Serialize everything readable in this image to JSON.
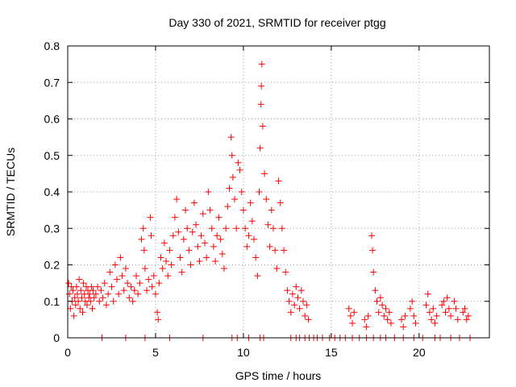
{
  "chart_data": {
    "type": "scatter",
    "title": "Day 330 of 2021, SRMTID for receiver ptgg",
    "xlabel": "GPS time / hours",
    "ylabel": "SRMTID / TECUs",
    "xlim": [
      0,
      24
    ],
    "ylim": [
      0,
      0.8
    ],
    "xticks": [
      0,
      5,
      10,
      15,
      20
    ],
    "yticks": [
      0,
      0.1,
      0.2,
      0.3,
      0.4,
      0.5,
      0.6,
      0.7,
      0.8
    ],
    "grid": true,
    "marker": "plus",
    "color": "#ff0000",
    "series": [
      {
        "name": "SRMTID",
        "points": [
          [
            0.05,
            0.15
          ],
          [
            0.1,
            0.12
          ],
          [
            0.15,
            0.08
          ],
          [
            0.2,
            0.14
          ],
          [
            0.25,
            0.1
          ],
          [
            0.3,
            0.13
          ],
          [
            0.35,
            0.06
          ],
          [
            0.4,
            0.11
          ],
          [
            0.45,
            0.09
          ],
          [
            0.5,
            0.14
          ],
          [
            0.55,
            0.12
          ],
          [
            0.6,
            0.1
          ],
          [
            0.65,
            0.16
          ],
          [
            0.7,
            0.08
          ],
          [
            0.75,
            0.13
          ],
          [
            0.8,
            0.11
          ],
          [
            0.85,
            0.07
          ],
          [
            0.9,
            0.15
          ],
          [
            0.95,
            0.12
          ],
          [
            1.0,
            0.1
          ],
          [
            1.05,
            0.14
          ],
          [
            1.1,
            0.09
          ],
          [
            1.15,
            0.13
          ],
          [
            1.2,
            0.11
          ],
          [
            1.25,
            0.12
          ],
          [
            1.3,
            0.1
          ],
          [
            1.35,
            0.14
          ],
          [
            1.4,
            0.08
          ],
          [
            1.45,
            0.13
          ],
          [
            1.5,
            0.11
          ],
          [
            1.6,
            0.12
          ],
          [
            1.7,
            0.14
          ],
          [
            1.8,
            0.1
          ],
          [
            1.9,
            0.13
          ],
          [
            2.0,
            0.11
          ],
          [
            2.1,
            0.15
          ],
          [
            2.2,
            0.09
          ],
          [
            2.3,
            0.12
          ],
          [
            2.4,
            0.18
          ],
          [
            2.5,
            0.14
          ],
          [
            2.6,
            0.1
          ],
          [
            2.7,
            0.2
          ],
          [
            2.8,
            0.16
          ],
          [
            2.9,
            0.12
          ],
          [
            3.0,
            0.22
          ],
          [
            3.1,
            0.17
          ],
          [
            3.2,
            0.13
          ],
          [
            3.3,
            0.19
          ],
          [
            3.4,
            0.15
          ],
          [
            3.5,
            0.11
          ],
          [
            3.6,
            0.14
          ],
          [
            3.7,
            0.1
          ],
          [
            3.8,
            0.13
          ],
          [
            3.9,
            0.17
          ],
          [
            4.0,
            0.12
          ],
          [
            4.1,
            0.15
          ],
          [
            4.2,
            0.27
          ],
          [
            4.3,
            0.3
          ],
          [
            4.35,
            0.24
          ],
          [
            4.4,
            0.19
          ],
          [
            4.5,
            0.13
          ],
          [
            4.6,
            0.16
          ],
          [
            4.7,
            0.33
          ],
          [
            4.75,
            0.28
          ],
          [
            4.8,
            0.14
          ],
          [
            4.9,
            0.17
          ],
          [
            5.0,
            0.12
          ],
          [
            5.1,
            0.07
          ],
          [
            5.15,
            0.05
          ],
          [
            5.2,
            0.15
          ],
          [
            5.3,
            0.22
          ],
          [
            5.4,
            0.19
          ],
          [
            5.5,
            0.26
          ],
          [
            5.6,
            0.21
          ],
          [
            5.7,
            0.17
          ],
          [
            5.8,
            0.24
          ],
          [
            5.9,
            0.2
          ],
          [
            6.0,
            0.28
          ],
          [
            6.1,
            0.33
          ],
          [
            6.2,
            0.38
          ],
          [
            6.3,
            0.29
          ],
          [
            6.4,
            0.22
          ],
          [
            6.5,
            0.18
          ],
          [
            6.6,
            0.27
          ],
          [
            6.7,
            0.35
          ],
          [
            6.8,
            0.3
          ],
          [
            6.9,
            0.24
          ],
          [
            7.0,
            0.2
          ],
          [
            7.1,
            0.29
          ],
          [
            7.2,
            0.37
          ],
          [
            7.3,
            0.31
          ],
          [
            7.4,
            0.25
          ],
          [
            7.5,
            0.21
          ],
          [
            7.6,
            0.28
          ],
          [
            7.7,
            0.34
          ],
          [
            7.8,
            0.26
          ],
          [
            7.9,
            0.22
          ],
          [
            8.0,
            0.4
          ],
          [
            8.1,
            0.35
          ],
          [
            8.2,
            0.3
          ],
          [
            8.3,
            0.25
          ],
          [
            8.4,
            0.21
          ],
          [
            8.5,
            0.28
          ],
          [
            8.6,
            0.33
          ],
          [
            8.7,
            0.27
          ],
          [
            8.8,
            0.23
          ],
          [
            8.9,
            0.19
          ],
          [
            9.0,
            0.3
          ],
          [
            9.1,
            0.36
          ],
          [
            9.2,
            0.41
          ],
          [
            9.3,
            0.55
          ],
          [
            9.35,
            0.5
          ],
          [
            9.4,
            0.44
          ],
          [
            9.5,
            0.38
          ],
          [
            9.6,
            0.3
          ],
          [
            9.7,
            0.48
          ],
          [
            9.8,
            0.46
          ],
          [
            9.9,
            0.4
          ],
          [
            10.0,
            0.35
          ],
          [
            10.1,
            0.3
          ],
          [
            10.2,
            0.25
          ],
          [
            10.3,
            0.28
          ],
          [
            10.4,
            0.37
          ],
          [
            10.5,
            0.32
          ],
          [
            10.6,
            0.27
          ],
          [
            10.7,
            0.22
          ],
          [
            10.8,
            0.17
          ],
          [
            10.9,
            0.4
          ],
          [
            10.95,
            0.52
          ],
          [
            11.0,
            0.64
          ],
          [
            11.02,
            0.69
          ],
          [
            11.05,
            0.75
          ],
          [
            11.1,
            0.58
          ],
          [
            11.2,
            0.45
          ],
          [
            11.3,
            0.38
          ],
          [
            11.4,
            0.31
          ],
          [
            11.5,
            0.25
          ],
          [
            11.6,
            0.35
          ],
          [
            11.7,
            0.3
          ],
          [
            11.8,
            0.24
          ],
          [
            11.9,
            0.19
          ],
          [
            12.0,
            0.43
          ],
          [
            12.1,
            0.37
          ],
          [
            12.2,
            0.3
          ],
          [
            12.3,
            0.24
          ],
          [
            12.4,
            0.18
          ],
          [
            12.5,
            0.13
          ],
          [
            12.6,
            0.1
          ],
          [
            12.7,
            0.07
          ],
          [
            12.8,
            0.12
          ],
          [
            12.9,
            0.09
          ],
          [
            13.0,
            0.14
          ],
          [
            13.1,
            0.11
          ],
          [
            13.2,
            0.08
          ],
          [
            13.3,
            0.13
          ],
          [
            13.4,
            0.1
          ],
          [
            13.5,
            0.06
          ],
          [
            13.6,
            0.09
          ],
          [
            13.7,
            0.05
          ],
          [
            16.0,
            0.08
          ],
          [
            16.1,
            0.06
          ],
          [
            16.2,
            0.04
          ],
          [
            16.3,
            0.07
          ],
          [
            16.9,
            0.05
          ],
          [
            17.0,
            0.03
          ],
          [
            17.1,
            0.06
          ],
          [
            17.3,
            0.28
          ],
          [
            17.35,
            0.24
          ],
          [
            17.4,
            0.18
          ],
          [
            17.5,
            0.13
          ],
          [
            17.6,
            0.1
          ],
          [
            17.7,
            0.07
          ],
          [
            17.8,
            0.11
          ],
          [
            17.9,
            0.09
          ],
          [
            18.0,
            0.06
          ],
          [
            18.1,
            0.08
          ],
          [
            18.2,
            0.05
          ],
          [
            18.3,
            0.07
          ],
          [
            18.4,
            0.04
          ],
          [
            19.0,
            0.05
          ],
          [
            19.1,
            0.03
          ],
          [
            19.2,
            0.06
          ],
          [
            19.5,
            0.08
          ],
          [
            19.6,
            0.1
          ],
          [
            19.7,
            0.06
          ],
          [
            19.8,
            0.04
          ],
          [
            20.4,
            0.09
          ],
          [
            20.5,
            0.12
          ],
          [
            20.6,
            0.07
          ],
          [
            20.7,
            0.05
          ],
          [
            20.8,
            0.08
          ],
          [
            20.9,
            0.04
          ],
          [
            21.0,
            0.06
          ],
          [
            21.3,
            0.09
          ],
          [
            21.4,
            0.1
          ],
          [
            21.5,
            0.07
          ],
          [
            21.6,
            0.11
          ],
          [
            21.7,
            0.08
          ],
          [
            21.8,
            0.06
          ],
          [
            22.0,
            0.1
          ],
          [
            22.1,
            0.08
          ],
          [
            22.2,
            0.05
          ],
          [
            22.5,
            0.07
          ],
          [
            22.6,
            0.08
          ],
          [
            22.7,
            0.05
          ],
          [
            22.8,
            0.06
          ],
          [
            1.95,
            0.0
          ],
          [
            3.3,
            0.0
          ],
          [
            4.4,
            0.0
          ],
          [
            5.8,
            0.0
          ],
          [
            7.7,
            0.0
          ],
          [
            9.35,
            0.0
          ],
          [
            9.65,
            0.0
          ],
          [
            10.3,
            0.0
          ],
          [
            10.95,
            0.0
          ],
          [
            11.15,
            0.0
          ],
          [
            12.7,
            0.0
          ],
          [
            13.0,
            0.0
          ],
          [
            13.2,
            0.0
          ],
          [
            13.5,
            0.0
          ],
          [
            13.75,
            0.0
          ],
          [
            14.0,
            0.0
          ],
          [
            14.2,
            0.0
          ],
          [
            14.5,
            0.0
          ],
          [
            14.9,
            0.0
          ],
          [
            15.2,
            0.0
          ],
          [
            15.5,
            0.0
          ],
          [
            15.8,
            0.0
          ],
          [
            16.2,
            0.0
          ],
          [
            16.6,
            0.0
          ],
          [
            17.0,
            0.0
          ],
          [
            17.4,
            0.0
          ],
          [
            17.8,
            0.0
          ],
          [
            18.1,
            0.0
          ],
          [
            18.6,
            0.0
          ],
          [
            19.1,
            0.0
          ],
          [
            19.7,
            0.0
          ],
          [
            20.2,
            0.0
          ],
          [
            20.9,
            0.0
          ],
          [
            21.2,
            0.0
          ],
          [
            21.8,
            0.0
          ],
          [
            22.3,
            0.0
          ],
          [
            22.9,
            0.0
          ]
        ]
      }
    ]
  }
}
